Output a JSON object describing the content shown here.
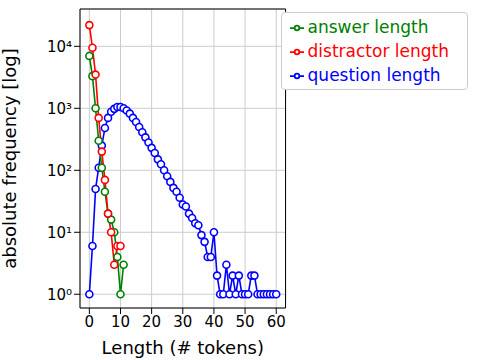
{
  "chart_data": {
    "type": "line",
    "xlabel": "Length (# tokens)",
    "ylabel": "absolute frequency [log]",
    "log": "y",
    "grid": true,
    "legend": "upper right",
    "xlim": [
      -3,
      63
    ],
    "xticks": [
      0,
      10,
      20,
      30,
      40,
      50,
      60
    ],
    "ylim": [
      0.6,
      40000
    ],
    "yticks": [
      {
        "value": 1,
        "label": "10⁰"
      },
      {
        "value": 10,
        "label": "10¹"
      },
      {
        "value": 100,
        "label": "10²"
      },
      {
        "value": 1000,
        "label": "10³"
      },
      {
        "value": 10000,
        "label": "10⁴"
      }
    ],
    "x": [
      0,
      1,
      2,
      3,
      4,
      5,
      6,
      7,
      8,
      9,
      10,
      11,
      12,
      13,
      14,
      15,
      16,
      17,
      18,
      19,
      20,
      21,
      22,
      23,
      24,
      25,
      26,
      27,
      28,
      29,
      30,
      31,
      32,
      33,
      34,
      35,
      36,
      37,
      38,
      39,
      40,
      41,
      42,
      43,
      44,
      45,
      46,
      47,
      48,
      49,
      50,
      51,
      52,
      53,
      54,
      55,
      56,
      57,
      58,
      59,
      60
    ],
    "series": [
      {
        "name": "question length",
        "color": "#0000ff",
        "marker": "o",
        "line_style": "solid",
        "values": [
          1,
          6,
          50,
          110,
          250,
          480,
          700,
          880,
          980,
          1050,
          1050,
          1000,
          920,
          820,
          700,
          600,
          500,
          410,
          340,
          280,
          230,
          190,
          150,
          125,
          100,
          80,
          65,
          52,
          45,
          36,
          28,
          26,
          20,
          17,
          14,
          13,
          9,
          7,
          4,
          4,
          10,
          2,
          1,
          1,
          3,
          1,
          2,
          1,
          2,
          1,
          1,
          1,
          2,
          2,
          1,
          1,
          1,
          1,
          1,
          1,
          1
        ]
      },
      {
        "name": "answer length",
        "color": "#008000",
        "marker": "o",
        "line_style": "solid",
        "values": [
          7000,
          3300,
          1000,
          300,
          110,
          45,
          20,
          16,
          10,
          4,
          1,
          3,
          null,
          null,
          null,
          null,
          null,
          null,
          null,
          null,
          null,
          null,
          null,
          null,
          null,
          null,
          null,
          null,
          null,
          null,
          null,
          null,
          null,
          null,
          null,
          null,
          null,
          null,
          null,
          null,
          null,
          null,
          null,
          null,
          null,
          null,
          null,
          null,
          null,
          null,
          null,
          null,
          null,
          null,
          null,
          null,
          null,
          null,
          null,
          null,
          null
        ]
      },
      {
        "name": "distractor length",
        "color": "#ff0000",
        "marker": "o",
        "line_style": "solid",
        "values": [
          22000,
          9500,
          3500,
          700,
          200,
          70,
          20,
          10,
          3,
          6,
          6,
          null,
          null,
          null,
          null,
          null,
          null,
          null,
          null,
          null,
          null,
          null,
          null,
          null,
          null,
          null,
          null,
          null,
          null,
          null,
          null,
          null,
          null,
          null,
          null,
          null,
          null,
          null,
          null,
          null,
          null,
          null,
          null,
          null,
          null,
          null,
          null,
          null,
          null,
          null,
          null,
          null,
          null,
          null,
          null,
          null,
          null,
          null,
          null,
          null,
          null
        ]
      }
    ]
  }
}
